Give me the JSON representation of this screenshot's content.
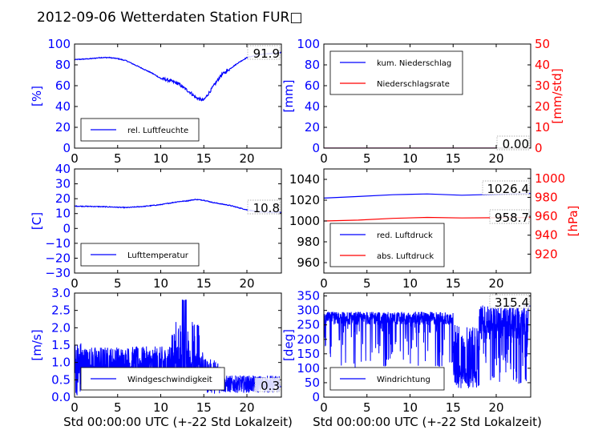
{
  "title": "2012-09-06 Wetterdaten Station FUR\u0000",
  "colors": {
    "primary": "#0000ff",
    "secondary": "#ff0000",
    "axis": "#000000"
  },
  "chart_data": [
    {
      "id": "humidity",
      "type": "line",
      "ylabel": "[%]",
      "xlabel": "",
      "xlim": [
        0,
        24
      ],
      "ylim": [
        0,
        100
      ],
      "xticks": [
        0,
        5,
        10,
        15,
        20
      ],
      "yticks": [
        0,
        20,
        40,
        60,
        80,
        100
      ],
      "ylabel_color": "#0000ff",
      "current_value": "91.9",
      "legend": {
        "placement": "lower-left",
        "entries": [
          "rel. Luftfeuchte"
        ]
      },
      "series": [
        {
          "name": "rel. Luftfeuchte",
          "color": "#0000ff",
          "x": [
            0,
            1,
            2,
            3,
            4,
            5,
            6,
            7,
            8,
            9,
            10,
            11,
            12,
            13,
            13.5,
            14,
            14.5,
            15,
            15.5,
            16,
            16.5,
            17,
            18,
            19,
            20,
            21,
            22,
            23,
            24
          ],
          "y": [
            85,
            85.5,
            86,
            87,
            87,
            86,
            84,
            80,
            76,
            72,
            67,
            65,
            62,
            56,
            53,
            49,
            47,
            46,
            52,
            58,
            64,
            70,
            76,
            82,
            87,
            89,
            90.5,
            91,
            91.9
          ]
        }
      ]
    },
    {
      "id": "precipitation",
      "type": "line",
      "ylabel": "[mm]",
      "ylabel_right": "[mm/std]",
      "xlabel": "",
      "xlim": [
        0,
        24
      ],
      "ylim": [
        0,
        100
      ],
      "ylim_right": [
        0,
        50
      ],
      "xticks": [
        0,
        5,
        10,
        15,
        20
      ],
      "yticks": [
        0,
        20,
        40,
        60,
        80,
        100
      ],
      "yticks_right": [
        0,
        10,
        20,
        30,
        40,
        50
      ],
      "ylabel_color": "#0000ff",
      "ylabel_right_color": "#ff0000",
      "current_value": "0.00",
      "legend": {
        "placement": "upper-left",
        "entries": [
          "kum. Niederschlag",
          "Niederschlagsrate"
        ]
      },
      "series": [
        {
          "name": "kum. Niederschlag",
          "color": "#0000ff",
          "axis": "left",
          "x": [
            0,
            24
          ],
          "y": [
            0,
            0
          ]
        },
        {
          "name": "Niederschlagsrate",
          "color": "#ff0000",
          "axis": "right",
          "x": [
            0,
            24
          ],
          "y": [
            0,
            0
          ]
        }
      ]
    },
    {
      "id": "temperature",
      "type": "line",
      "ylabel": "[C]",
      "xlabel": "",
      "xlim": [
        0,
        24
      ],
      "ylim": [
        -30,
        40
      ],
      "xticks": [
        0,
        5,
        10,
        15,
        20
      ],
      "yticks": [
        -30,
        -20,
        -10,
        0,
        10,
        20,
        30,
        40
      ],
      "ylabel_color": "#0000ff",
      "current_value": "10.8",
      "legend": {
        "placement": "lower-left",
        "entries": [
          "Lufttemperatur"
        ]
      },
      "series": [
        {
          "name": "Lufttemperatur",
          "color": "#0000ff",
          "x": [
            0,
            2,
            4,
            6,
            8,
            10,
            11,
            12,
            13,
            14,
            15,
            16,
            17,
            18,
            19,
            20,
            21,
            22,
            23,
            24
          ],
          "y": [
            15,
            14.8,
            14.5,
            14,
            14.8,
            16,
            17,
            18,
            18.5,
            19.5,
            19,
            17.5,
            16.5,
            15.5,
            14,
            12.5,
            11.5,
            11,
            10.9,
            10.8
          ]
        }
      ]
    },
    {
      "id": "pressure",
      "type": "line",
      "ylabel": "[hPa]",
      "xlabel": "",
      "xlim": [
        0,
        24
      ],
      "ylim": [
        950,
        1050
      ],
      "ylim_right": [
        900,
        1010
      ],
      "xticks": [
        0,
        5,
        10,
        15,
        20
      ],
      "yticks": [
        960,
        980,
        1000,
        1020,
        1040
      ],
      "yticks_right": [
        920,
        940,
        960,
        980,
        1000
      ],
      "ylabel_right_color": "#ff0000",
      "current_values": [
        "1026.4",
        "958.7"
      ],
      "legend": {
        "placement": "lower-left",
        "entries": [
          "red. Luftdruck",
          "abs. Luftdruck"
        ]
      },
      "series": [
        {
          "name": "red. Luftdruck",
          "color": "#0000ff",
          "axis": "left",
          "x": [
            0,
            4,
            8,
            12,
            16,
            20,
            24
          ],
          "y": [
            1022,
            1023.5,
            1025.2,
            1026,
            1024.8,
            1025.6,
            1026.4
          ]
        },
        {
          "name": "abs. Luftdruck",
          "color": "#ff0000",
          "axis": "right",
          "x": [
            0,
            4,
            8,
            12,
            16,
            20,
            24
          ],
          "y": [
            955,
            955.9,
            957.8,
            958.8,
            958.2,
            958.5,
            958.7
          ]
        }
      ]
    },
    {
      "id": "wind_speed",
      "type": "line",
      "ylabel": "[m/s]",
      "xlabel": "Std 00:00:00 UTC (+-22 Std Lokalzeit)",
      "xlim": [
        0,
        24
      ],
      "ylim": [
        0,
        3.0
      ],
      "xticks": [
        0,
        5,
        10,
        15,
        20
      ],
      "yticks": [
        0.0,
        0.5,
        1.0,
        1.5,
        2.0,
        2.5,
        3.0
      ],
      "ylabel_color": "#0000ff",
      "current_value": "0.3",
      "legend": {
        "placement": "lower-left",
        "entries": [
          "Windgeschwindigkeit"
        ]
      },
      "series": [
        {
          "name": "Windgeschwindigkeit",
          "color": "#0000ff",
          "x": [],
          "y": []
        }
      ]
    },
    {
      "id": "wind_direction",
      "type": "line",
      "ylabel": "[deg]",
      "xlabel": "Std 00:00:00 UTC (+-22 Std Lokalzeit)",
      "xlim": [
        0,
        24
      ],
      "ylim": [
        0,
        360
      ],
      "xticks": [
        0,
        5,
        10,
        15,
        20
      ],
      "yticks": [
        0,
        50,
        100,
        150,
        200,
        250,
        300,
        350
      ],
      "ylabel_color": "#0000ff",
      "current_value": "315.4",
      "legend": {
        "placement": "lower-left",
        "entries": [
          "Windrichtung"
        ]
      },
      "series": [
        {
          "name": "Windrichtung",
          "color": "#0000ff",
          "x": [],
          "y": []
        }
      ]
    }
  ]
}
